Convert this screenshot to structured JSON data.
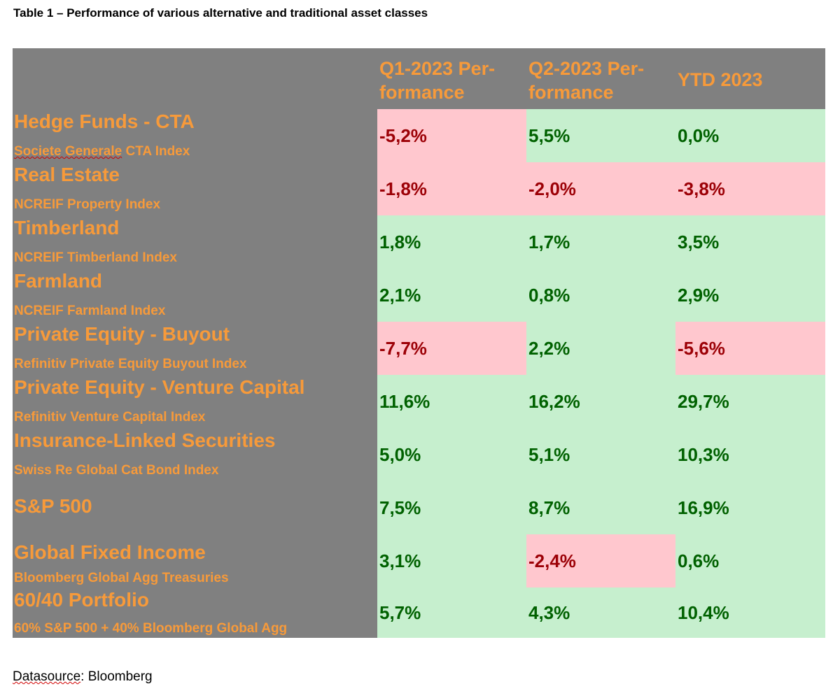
{
  "title": "Table 1 – Performance of various alternative and traditional asset classes",
  "header": {
    "q1": "Q1-2023 Per-formance",
    "q2": "Q2-2023 Per-formance",
    "ytd": "YTD 2023"
  },
  "rows": [
    {
      "name": "Hedge Funds - CTA",
      "sub": "Societe Generale CTA Index",
      "q1": "-5,2%",
      "q2": "5,5%",
      "ytd": "0,0%"
    },
    {
      "name": "Real Estate",
      "sub": "NCREIF Property Index",
      "q1": "-1,8%",
      "q2": "-2,0%",
      "ytd": "-3,8%"
    },
    {
      "name": "Timberland",
      "sub": "NCREIF Timberland Index",
      "q1": "1,8%",
      "q2": "1,7%",
      "ytd": "3,5%"
    },
    {
      "name": "Farmland",
      "sub": "NCREIF Farmland Index",
      "q1": "2,1%",
      "q2": "0,8%",
      "ytd": "2,9%"
    },
    {
      "name": "Private Equity - Buyout",
      "sub": "Refinitiv Private Equity Buyout Index",
      "q1": "-7,7%",
      "q2": "2,2%",
      "ytd": "-5,6%"
    },
    {
      "name": "Private Equity - Venture Capital",
      "sub": "Refinitiv Venture Capital Index",
      "q1": "11,6%",
      "q2": "16,2%",
      "ytd": "29,7%"
    },
    {
      "name": "Insurance-Linked Securities",
      "sub": "Swiss Re Global Cat Bond Index",
      "q1": "5,0%",
      "q2": "5,1%",
      "ytd": "10,3%"
    },
    {
      "name": "S&P 500",
      "sub": "",
      "q1": "7,5%",
      "q2": "8,7%",
      "ytd": "16,9%"
    },
    {
      "name": "Global Fixed Income",
      "sub": "Bloomberg Global Agg Treasuries",
      "q1": "3,1%",
      "q2": "-2,4%",
      "ytd": "0,6%"
    },
    {
      "name": "60/40 Portfolio",
      "sub": "60% S&P 500 + 40% Bloomberg Global Agg",
      "q1": "5,7%",
      "q2": "4,3%",
      "ytd": "10,4%"
    }
  ],
  "source": {
    "label": "Datasource",
    "value": ": Bloomberg"
  },
  "colors": {
    "header_bg": "#808080",
    "label_orange": "#f79a3a",
    "positive_bg": "#c6efce",
    "positive_text": "#006100",
    "negative_bg": "#ffc7ce",
    "negative_text": "#9c0006"
  }
}
